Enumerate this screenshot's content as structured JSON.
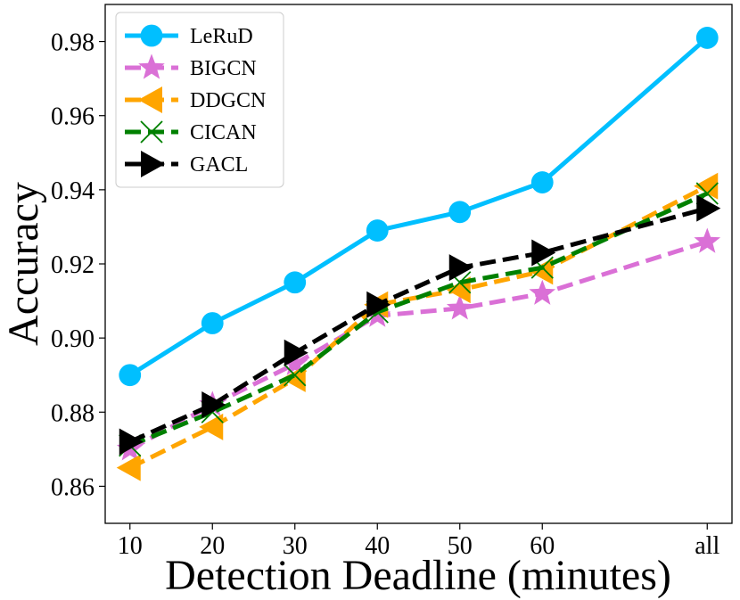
{
  "chart_data": {
    "type": "line",
    "title": "",
    "xlabel": "Detection Deadline (minutes)",
    "ylabel": "Accuracy",
    "categories": [
      "10",
      "20",
      "30",
      "40",
      "50",
      "60",
      "all"
    ],
    "x_positions": [
      10,
      20,
      30,
      40,
      50,
      60,
      80
    ],
    "xlim": [
      7,
      83
    ],
    "ylim": [
      0.85,
      0.99
    ],
    "yticks": [
      0.86,
      0.88,
      0.9,
      0.92,
      0.94,
      0.96,
      0.98
    ],
    "ytick_labels": [
      "0.86",
      "0.88",
      "0.90",
      "0.92",
      "0.94",
      "0.96",
      "0.98"
    ],
    "grid": false,
    "legend_position": "top-left",
    "series": [
      {
        "name": "LeRuD",
        "color": "#00BFFF",
        "linestyle": "solid",
        "marker": "circle",
        "values": [
          0.89,
          0.904,
          0.915,
          0.929,
          0.934,
          0.942,
          0.981
        ]
      },
      {
        "name": "BIGCN",
        "color": "#DA70D6",
        "linestyle": "dashed",
        "marker": "star",
        "values": [
          0.87,
          0.882,
          0.893,
          0.906,
          0.908,
          0.912,
          0.926
        ]
      },
      {
        "name": "DDGCN",
        "color": "#FFA500",
        "linestyle": "dashed",
        "marker": "triangle-left",
        "values": [
          0.865,
          0.876,
          0.889,
          0.909,
          0.913,
          0.918,
          0.941
        ]
      },
      {
        "name": "CICAN",
        "color": "#008000",
        "linestyle": "dashed",
        "marker": "x",
        "values": [
          0.871,
          0.88,
          0.89,
          0.907,
          0.915,
          0.919,
          0.939
        ]
      },
      {
        "name": "GACL",
        "color": "#000000",
        "linestyle": "dashed",
        "marker": "triangle-right",
        "values": [
          0.872,
          0.882,
          0.896,
          0.909,
          0.919,
          0.923,
          0.935
        ]
      }
    ]
  }
}
